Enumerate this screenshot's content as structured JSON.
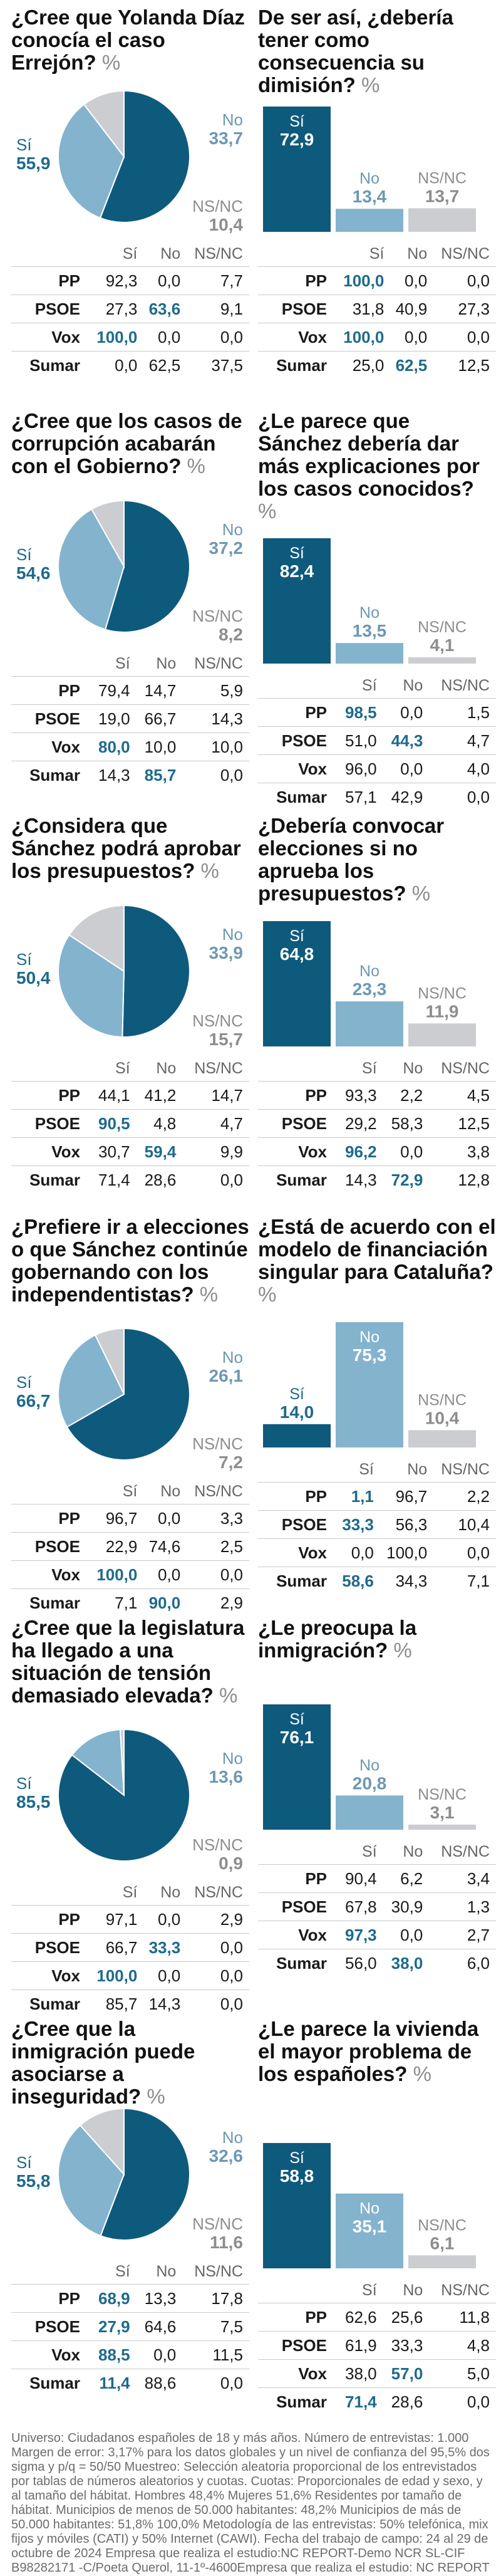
{
  "colors": {
    "dark": "#0e5a7d",
    "mid": "#84b3ce",
    "light": "#cbcdd0",
    "text_dark": "#1f6a8c",
    "text_mid": "#6e98b3",
    "text_light": "#8d8d8d"
  },
  "labels": {
    "si": "Sí",
    "no": "No",
    "nsnc": "NS/NC",
    "pct": "%"
  },
  "chart_data": [
    {
      "type": "pie",
      "title": "¿Cree que Yolanda Díaz conocía el caso Errejón?",
      "categories": [
        "Sí",
        "No",
        "NS/NC"
      ],
      "values": [
        "55,9",
        "33,7",
        "10,4"
      ],
      "numbers": [
        55.9,
        33.7,
        10.4
      ],
      "table": {
        "columns": [
          "Sí",
          "No",
          "NS/NC"
        ],
        "highlight": "max",
        "rows": [
          {
            "party": "PP",
            "values": [
              "92,3",
              "0,0",
              "7,7"
            ],
            "hl": []
          },
          {
            "party": "PSOE",
            "values": [
              "27,3",
              "63,6",
              "9,1"
            ],
            "hl": [
              1
            ]
          },
          {
            "party": "Vox",
            "values": [
              "100,0",
              "0,0",
              "0,0"
            ],
            "hl": [
              0
            ]
          },
          {
            "party": "Sumar",
            "values": [
              "0,0",
              "62,5",
              "37,5"
            ],
            "hl": []
          }
        ]
      }
    },
    {
      "type": "bar",
      "title": "De ser así, ¿debería tener como consecuencia su dimisión?",
      "categories": [
        "Sí",
        "No",
        "NS/NC"
      ],
      "values": [
        "72,9",
        "13,4",
        "13,7"
      ],
      "numbers": [
        72.9,
        13.4,
        13.7
      ],
      "table": {
        "columns": [
          "Sí",
          "No",
          "NS/NC"
        ],
        "rows": [
          {
            "party": "PP",
            "values": [
              "100,0",
              "0,0",
              "0,0"
            ],
            "hl": [
              0
            ]
          },
          {
            "party": "PSOE",
            "values": [
              "31,8",
              "40,9",
              "27,3"
            ],
            "hl": []
          },
          {
            "party": "Vox",
            "values": [
              "100,0",
              "0,0",
              "0,0"
            ],
            "hl": [
              0
            ]
          },
          {
            "party": "Sumar",
            "values": [
              "25,0",
              "62,5",
              "12,5"
            ],
            "hl": [
              1
            ]
          }
        ]
      }
    },
    {
      "type": "pie",
      "title": "¿Cree que los casos de corrupción acabarán con el Gobierno?",
      "categories": [
        "Sí",
        "No",
        "NS/NC"
      ],
      "values": [
        "54,6",
        "37,2",
        "8,2"
      ],
      "numbers": [
        54.6,
        37.2,
        8.2
      ],
      "table": {
        "columns": [
          "Sí",
          "No",
          "NS/NC"
        ],
        "rows": [
          {
            "party": "PP",
            "values": [
              "79,4",
              "14,7",
              "5,9"
            ],
            "hl": []
          },
          {
            "party": "PSOE",
            "values": [
              "19,0",
              "66,7",
              "14,3"
            ],
            "hl": []
          },
          {
            "party": "Vox",
            "values": [
              "80,0",
              "10,0",
              "10,0"
            ],
            "hl": [
              0
            ]
          },
          {
            "party": "Sumar",
            "values": [
              "14,3",
              "85,7",
              "0,0"
            ],
            "hl": [
              1
            ]
          }
        ]
      }
    },
    {
      "type": "bar",
      "title": "¿Le parece que Sánchez debería dar más explicaciones por los casos conocidos?",
      "categories": [
        "Sí",
        "No",
        "NS/NC"
      ],
      "values": [
        "82,4",
        "13,5",
        "4,1"
      ],
      "numbers": [
        82.4,
        13.5,
        4.1
      ],
      "table": {
        "columns": [
          "Sí",
          "No",
          "NS/NC"
        ],
        "rows": [
          {
            "party": "PP",
            "values": [
              "98,5",
              "0,0",
              "1,5"
            ],
            "hl": [
              0
            ]
          },
          {
            "party": "PSOE",
            "values": [
              "51,0",
              "44,3",
              "4,7"
            ],
            "hl": [
              1
            ]
          },
          {
            "party": "Vox",
            "values": [
              "96,0",
              "0,0",
              "4,0"
            ],
            "hl": []
          },
          {
            "party": "Sumar",
            "values": [
              "57,1",
              "42,9",
              "0,0"
            ],
            "hl": []
          }
        ]
      }
    },
    {
      "type": "pie",
      "title": "¿Considera que Sánchez podrá aprobar los presupuestos?",
      "categories": [
        "Sí",
        "No",
        "NS/NC"
      ],
      "values": [
        "50,4",
        "33,9",
        "15,7"
      ],
      "numbers": [
        50.4,
        33.9,
        15.7
      ],
      "table": {
        "columns": [
          "Sí",
          "No",
          "NS/NC"
        ],
        "rows": [
          {
            "party": "PP",
            "values": [
              "44,1",
              "41,2",
              "14,7"
            ],
            "hl": []
          },
          {
            "party": "PSOE",
            "values": [
              "90,5",
              "4,8",
              "4,7"
            ],
            "hl": [
              0
            ]
          },
          {
            "party": "Vox",
            "values": [
              "30,7",
              "59,4",
              "9,9"
            ],
            "hl": [
              1
            ]
          },
          {
            "party": "Sumar",
            "values": [
              "71,4",
              "28,6",
              "0,0"
            ],
            "hl": []
          }
        ]
      }
    },
    {
      "type": "bar",
      "title": "¿Debería convocar elecciones si no aprueba los presupuestos?",
      "categories": [
        "Sí",
        "No",
        "NS/NC"
      ],
      "values": [
        "64,8",
        "23,3",
        "11,9"
      ],
      "numbers": [
        64.8,
        23.3,
        11.9
      ],
      "table": {
        "columns": [
          "Sí",
          "No",
          "NS/NC"
        ],
        "rows": [
          {
            "party": "PP",
            "values": [
              "93,3",
              "2,2",
              "4,5"
            ],
            "hl": []
          },
          {
            "party": "PSOE",
            "values": [
              "29,2",
              "58,3",
              "12,5"
            ],
            "hl": []
          },
          {
            "party": "Vox",
            "values": [
              "96,2",
              "0,0",
              "3,8"
            ],
            "hl": [
              0
            ]
          },
          {
            "party": "Sumar",
            "values": [
              "14,3",
              "72,9",
              "12,8"
            ],
            "hl": [
              1
            ]
          }
        ]
      }
    },
    {
      "type": "pie",
      "title": "¿Prefiere ir a elecciones o que Sánchez continúe gobernando con los independentistas?",
      "categories": [
        "Sí",
        "No",
        "NS/NC"
      ],
      "values": [
        "66,7",
        "26,1",
        "7,2"
      ],
      "numbers": [
        66.7,
        26.1,
        7.2
      ],
      "table": {
        "columns": [
          "Sí",
          "No",
          "NS/NC"
        ],
        "rows": [
          {
            "party": "PP",
            "values": [
              "96,7",
              "0,0",
              "3,3"
            ],
            "hl": []
          },
          {
            "party": "PSOE",
            "values": [
              "22,9",
              "74,6",
              "2,5"
            ],
            "hl": []
          },
          {
            "party": "Vox",
            "values": [
              "100,0",
              "0,0",
              "0,0"
            ],
            "hl": [
              0
            ]
          },
          {
            "party": "Sumar",
            "values": [
              "7,1",
              "90,0",
              "2,9"
            ],
            "hl": [
              1
            ]
          }
        ]
      }
    },
    {
      "type": "bar",
      "title": "¿Está de acuerdo con el modelo de financiación singular para Cataluña?",
      "categories": [
        "Sí",
        "No",
        "NS/NC"
      ],
      "values": [
        "14,0",
        "75,3",
        "10,4"
      ],
      "numbers": [
        14.0,
        75.3,
        10.4
      ],
      "table": {
        "columns": [
          "Sí",
          "No",
          "NS/NC"
        ],
        "rows": [
          {
            "party": "PP",
            "values": [
              "1,1",
              "96,7",
              "2,2"
            ],
            "hl": [
              0
            ]
          },
          {
            "party": "PSOE",
            "values": [
              "33,3",
              "56,3",
              "10,4"
            ],
            "hl": [
              0
            ]
          },
          {
            "party": "Vox",
            "values": [
              "0,0",
              "100,0",
              "0,0"
            ],
            "hl": []
          },
          {
            "party": "Sumar",
            "values": [
              "58,6",
              "34,3",
              "7,1"
            ],
            "hl": [
              0
            ]
          }
        ]
      }
    },
    {
      "type": "pie",
      "title": "¿Cree que la legislatura ha llegado a una situación de tensión demasiado elevada?",
      "categories": [
        "Sí",
        "No",
        "NS/NC"
      ],
      "values": [
        "85,5",
        "13,6",
        "0,9"
      ],
      "numbers": [
        85.5,
        13.6,
        0.9
      ],
      "table": {
        "columns": [
          "Sí",
          "No",
          "NS/NC"
        ],
        "rows": [
          {
            "party": "PP",
            "values": [
              "97,1",
              "0,0",
              "2,9"
            ],
            "hl": []
          },
          {
            "party": "PSOE",
            "values": [
              "66,7",
              "33,3",
              "0,0"
            ],
            "hl": [
              1
            ]
          },
          {
            "party": "Vox",
            "values": [
              "100,0",
              "0,0",
              "0,0"
            ],
            "hl": [
              0
            ]
          },
          {
            "party": "Sumar",
            "values": [
              "85,7",
              "14,3",
              "0,0"
            ],
            "hl": []
          }
        ]
      }
    },
    {
      "type": "bar",
      "title": "¿Le preocupa la inmigración?",
      "categories": [
        "Sí",
        "No",
        "NS/NC"
      ],
      "values": [
        "76,1",
        "20,8",
        "3,1"
      ],
      "numbers": [
        76.1,
        20.8,
        3.1
      ],
      "table": {
        "columns": [
          "Sí",
          "No",
          "NS/NC"
        ],
        "rows": [
          {
            "party": "PP",
            "values": [
              "90,4",
              "6,2",
              "3,4"
            ],
            "hl": []
          },
          {
            "party": "PSOE",
            "values": [
              "67,8",
              "30,9",
              "1,3"
            ],
            "hl": []
          },
          {
            "party": "Vox",
            "values": [
              "97,3",
              "0,0",
              "2,7"
            ],
            "hl": [
              0
            ]
          },
          {
            "party": "Sumar",
            "values": [
              "56,0",
              "38,0",
              "6,0"
            ],
            "hl": [
              1
            ]
          }
        ]
      }
    },
    {
      "type": "pie",
      "title": "¿Cree que la inmigración puede asociarse a inseguridad?",
      "categories": [
        "Sí",
        "No",
        "NS/NC"
      ],
      "values": [
        "55,8",
        "32,6",
        "11,6"
      ],
      "numbers": [
        55.8,
        32.6,
        11.6
      ],
      "table": {
        "columns": [
          "Sí",
          "No",
          "NS/NC"
        ],
        "rows": [
          {
            "party": "PP",
            "values": [
              "68,9",
              "13,3",
              "17,8"
            ],
            "hl": [
              0
            ]
          },
          {
            "party": "PSOE",
            "values": [
              "27,9",
              "64,6",
              "7,5"
            ],
            "hl": [
              0
            ]
          },
          {
            "party": "Vox",
            "values": [
              "88,5",
              "0,0",
              "11,5"
            ],
            "hl": [
              0
            ]
          },
          {
            "party": "Sumar",
            "values": [
              "11,4",
              "88,6",
              "0,0"
            ],
            "hl": [
              0
            ]
          }
        ]
      }
    },
    {
      "type": "bar",
      "title": "¿Le parece la vivienda el mayor problema de los españoles?",
      "categories": [
        "Sí",
        "No",
        "NS/NC"
      ],
      "values": [
        "58,8",
        "35,1",
        "6,1"
      ],
      "numbers": [
        58.8,
        35.1,
        6.1
      ],
      "table": {
        "columns": [
          "Sí",
          "No",
          "NS/NC"
        ],
        "rows": [
          {
            "party": "PP",
            "values": [
              "62,6",
              "25,6",
              "11,8"
            ],
            "hl": []
          },
          {
            "party": "PSOE",
            "values": [
              "61,9",
              "33,3",
              "4,8"
            ],
            "hl": []
          },
          {
            "party": "Vox",
            "values": [
              "38,0",
              "57,0",
              "5,0"
            ],
            "hl": [
              1
            ]
          },
          {
            "party": "Sumar",
            "values": [
              "71,4",
              "28,6",
              "0,0"
            ],
            "hl": [
              0
            ]
          }
        ]
      }
    }
  ],
  "footer": "Universo: Ciudadanos españoles de 18 y más años. Número de entrevistas: 1.000 Margen de error: 3,17% para los datos globales y un nivel de confianza del 95,5% dos sigma y p/q = 50/50 Muestreo: Selección aleatoria proporcional de los entrevistados por tablas de números aleatorios y cuotas. Cuotas: Proporcionales de edad y sexo, y al tamaño del hábitat. Hombres 48,4% Mujeres 51,6% Residentes por tamaño de hábitat. Municipios de menos de 50.000 habitantes: 48,2% Municipios de más de 50.000 habitantes: 51,8% 100,0% Metodología de las entrevistas: 50% telefónica, mix fijos y móviles (CATI) y 50% Internet (CAWI). Fecha del trabajo de campo: 24 al 29 de octubre de 2024 Empresa que realiza el estudio:NC REPORT-Demo NCR SL-CIF B98282171 -C/Poeta Querol, 11-1º-4600Empresa que realiza el estudio: NC REPORT"
}
